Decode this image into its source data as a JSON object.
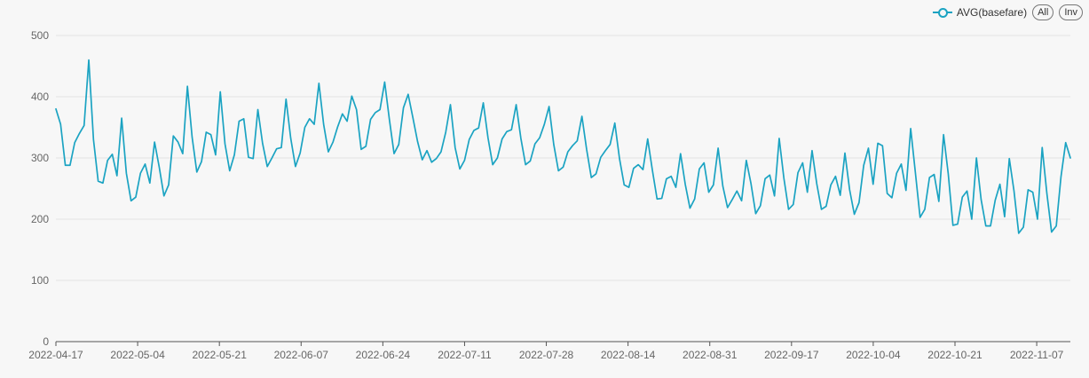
{
  "legend": {
    "series_label": "AVG(basefare)",
    "all_label": "All",
    "inv_label": "Inv"
  },
  "colors": {
    "line": "#1ba3c2",
    "grid": "#e3e3e3",
    "axis": "#555555"
  },
  "chart_data": {
    "type": "line",
    "x_start": "2022-04-17",
    "x_end": "2022-11-14",
    "x_tick_labels": [
      "2022-04-17",
      "2022-05-04",
      "2022-05-21",
      "2022-06-07",
      "2022-06-24",
      "2022-07-11",
      "2022-07-28",
      "2022-08-14",
      "2022-08-31",
      "2022-09-17",
      "2022-10-04",
      "2022-10-21",
      "2022-11-07"
    ],
    "y_ticks": [
      0,
      100,
      200,
      300,
      400,
      500
    ],
    "ylim": [
      0,
      500
    ],
    "grid": true,
    "legend_position": "top-right",
    "series": [
      {
        "name": "AVG(basefare)",
        "values": [
          380,
          355,
          288,
          288,
          325,
          340,
          353,
          460,
          330,
          262,
          259,
          296,
          306,
          271,
          365,
          275,
          230,
          236,
          275,
          290,
          259,
          326,
          285,
          238,
          256,
          336,
          326,
          307,
          417,
          334,
          277,
          294,
          342,
          338,
          305,
          408,
          323,
          279,
          305,
          360,
          364,
          301,
          299,
          379,
          324,
          286,
          300,
          315,
          317,
          396,
          332,
          286,
          308,
          350,
          364,
          355,
          422,
          355,
          310,
          326,
          351,
          372,
          360,
          401,
          379,
          314,
          319,
          363,
          374,
          379,
          424,
          363,
          307,
          322,
          382,
          404,
          366,
          327,
          297,
          312,
          293,
          299,
          310,
          342,
          387,
          317,
          282,
          296,
          330,
          345,
          349,
          390,
          333,
          289,
          300,
          331,
          343,
          346,
          387,
          332,
          289,
          295,
          323,
          333,
          355,
          384,
          322,
          279,
          285,
          310,
          320,
          328,
          368,
          314,
          268,
          274,
          301,
          312,
          322,
          357,
          299,
          256,
          252,
          283,
          289,
          281,
          331,
          280,
          233,
          234,
          266,
          270,
          252,
          307,
          257,
          218,
          233,
          282,
          292,
          244,
          256,
          316,
          254,
          219,
          232,
          246,
          230,
          296,
          258,
          209,
          222,
          266,
          272,
          238,
          332,
          267,
          216,
          224,
          276,
          292,
          244,
          312,
          258,
          216,
          221,
          256,
          270,
          239,
          308,
          248,
          208,
          227,
          288,
          316,
          257,
          324,
          320,
          242,
          235,
          275,
          290,
          247,
          348,
          276,
          203,
          216,
          268,
          273,
          229,
          338,
          274,
          190,
          192,
          236,
          246,
          200,
          300,
          232,
          189,
          189,
          231,
          257,
          204,
          299,
          246,
          177,
          187,
          248,
          244,
          200,
          317,
          242,
          179,
          189,
          269,
          325,
          300
        ]
      }
    ]
  }
}
